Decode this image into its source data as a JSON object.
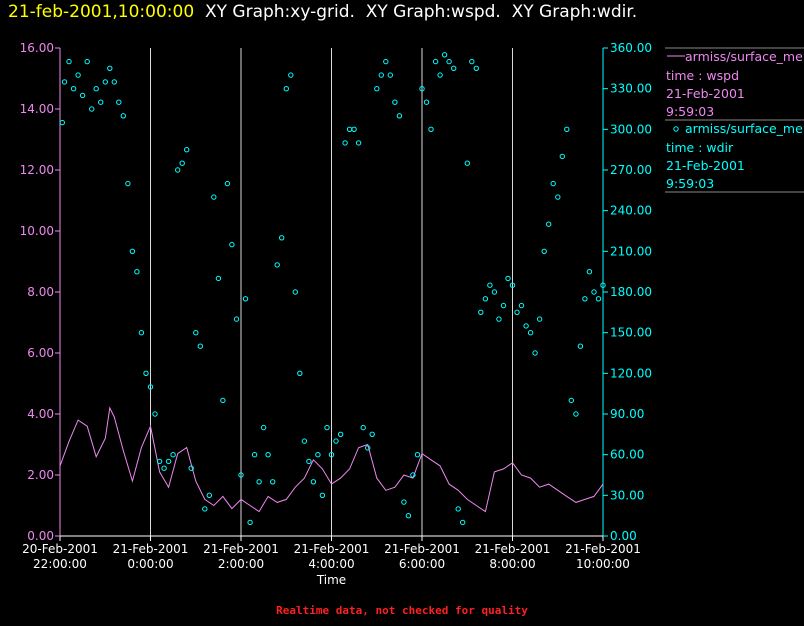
{
  "header": {
    "timestamp": "21-feb-2001,10:00:00",
    "graph_titles": [
      "XY Graph:xy-grid.",
      "XY Graph:wspd.",
      "XY Graph:wdir."
    ]
  },
  "footer_note": "Realtime data, not checked for quality",
  "colors": {
    "timestamp": "#ffff00",
    "wspd": "#ee88ee",
    "wdir": "#00ffff",
    "grid": "#ffffff",
    "background": "#000000",
    "warning": "#ff2020"
  },
  "legend": [
    {
      "marker": "line",
      "name": "armiss/surface_me",
      "var": "time : wspd",
      "date": "21-Feb-2001",
      "time": "9:59:03"
    },
    {
      "marker": "circle",
      "name": "armiss/surface_me",
      "var": "time : wdir",
      "date": "21-Feb-2001",
      "time": "9:59:03"
    }
  ],
  "chart_data": {
    "type": "line",
    "xlabel": "Time",
    "x_ticks": [
      {
        "date": "20-Feb-2001",
        "time": "22:00:00",
        "hour": -2
      },
      {
        "date": "21-Feb-2001",
        "time": "0:00:00",
        "hour": 0
      },
      {
        "date": "21-Feb-2001",
        "time": "2:00:00",
        "hour": 2
      },
      {
        "date": "21-Feb-2001",
        "time": "4:00:00",
        "hour": 4
      },
      {
        "date": "21-Feb-2001",
        "time": "6:00:00",
        "hour": 6
      },
      {
        "date": "21-Feb-2001",
        "time": "8:00:00",
        "hour": 8
      },
      {
        "date": "21-Feb-2001",
        "time": "10:00:00",
        "hour": 10
      }
    ],
    "xlim_hours": [
      -2,
      10
    ],
    "y_left": {
      "ticks": [
        "0.00",
        "2.00",
        "4.00",
        "6.00",
        "8.00",
        "10.00",
        "12.00",
        "14.00",
        "16.00"
      ],
      "lim": [
        0,
        16
      ]
    },
    "y_right": {
      "ticks": [
        "0.00",
        "30.00",
        "60.00",
        "90.00",
        "120.00",
        "150.00",
        "180.00",
        "210.00",
        "240.00",
        "270.00",
        "300.00",
        "330.00",
        "360.00"
      ],
      "lim": [
        0,
        360
      ]
    },
    "grid": "vertical",
    "series": [
      {
        "var": "wspd",
        "axis": "left",
        "style": "line",
        "x": [
          -2.0,
          -1.8,
          -1.6,
          -1.4,
          -1.2,
          -1.0,
          -0.9,
          -0.8,
          -0.6,
          -0.4,
          -0.2,
          0.0,
          0.2,
          0.4,
          0.6,
          0.8,
          1.0,
          1.2,
          1.4,
          1.6,
          1.8,
          2.0,
          2.2,
          2.4,
          2.6,
          2.8,
          3.0,
          3.2,
          3.4,
          3.6,
          3.8,
          4.0,
          4.2,
          4.4,
          4.6,
          4.8,
          5.0,
          5.2,
          5.4,
          5.6,
          5.8,
          6.0,
          6.2,
          6.4,
          6.6,
          6.8,
          7.0,
          7.2,
          7.4,
          7.6,
          7.8,
          8.0,
          8.2,
          8.4,
          8.6,
          8.8,
          9.0,
          9.2,
          9.4,
          9.6,
          9.8,
          10.0
        ],
        "y": [
          2.3,
          3.1,
          3.8,
          3.6,
          2.6,
          3.2,
          4.2,
          3.9,
          2.8,
          1.8,
          2.9,
          3.6,
          2.1,
          1.6,
          2.7,
          2.9,
          1.8,
          1.2,
          1.0,
          1.3,
          0.9,
          1.2,
          1.0,
          0.8,
          1.3,
          1.1,
          1.2,
          1.6,
          1.9,
          2.5,
          2.2,
          1.7,
          1.9,
          2.2,
          2.9,
          3.0,
          1.9,
          1.5,
          1.6,
          2.0,
          1.9,
          2.7,
          2.5,
          2.3,
          1.7,
          1.5,
          1.2,
          1.0,
          0.8,
          2.1,
          2.2,
          2.4,
          2.0,
          1.9,
          1.6,
          1.7,
          1.5,
          1.3,
          1.1,
          1.2,
          1.3,
          1.7
        ]
      },
      {
        "var": "wdir",
        "axis": "right",
        "style": "markers",
        "x": [
          -1.95,
          -1.9,
          -1.8,
          -1.7,
          -1.6,
          -1.5,
          -1.4,
          -1.3,
          -1.2,
          -1.1,
          -1.0,
          -0.9,
          -0.8,
          -0.7,
          -0.6,
          -0.5,
          -0.4,
          -0.3,
          -0.2,
          -0.1,
          0.0,
          0.1,
          0.2,
          0.3,
          0.4,
          0.5,
          0.6,
          0.7,
          0.8,
          0.9,
          1.0,
          1.1,
          1.2,
          1.3,
          1.4,
          1.5,
          1.6,
          1.7,
          1.8,
          1.9,
          2.0,
          2.1,
          2.2,
          2.3,
          2.4,
          2.5,
          2.6,
          2.7,
          2.8,
          2.9,
          3.0,
          3.1,
          3.2,
          3.3,
          3.4,
          3.5,
          3.6,
          3.7,
          3.8,
          3.9,
          4.0,
          4.1,
          4.2,
          4.3,
          4.4,
          4.5,
          4.6,
          4.7,
          4.8,
          4.9,
          5.0,
          5.1,
          5.2,
          5.3,
          5.4,
          5.5,
          5.6,
          5.7,
          5.8,
          5.9,
          6.0,
          6.1,
          6.2,
          6.3,
          6.4,
          6.5,
          6.6,
          6.7,
          6.8,
          6.9,
          7.0,
          7.1,
          7.2,
          7.3,
          7.4,
          7.5,
          7.6,
          7.7,
          7.8,
          7.9,
          8.0,
          8.1,
          8.2,
          8.3,
          8.4,
          8.5,
          8.6,
          8.7,
          8.8,
          8.9,
          9.0,
          9.1,
          9.2,
          9.3,
          9.4,
          9.5,
          9.6,
          9.7,
          9.8,
          9.9,
          10.0
        ],
        "y": [
          305,
          335,
          350,
          330,
          340,
          325,
          350,
          315,
          330,
          320,
          335,
          345,
          335,
          320,
          310,
          260,
          210,
          195,
          150,
          120,
          110,
          90,
          55,
          50,
          55,
          60,
          270,
          275,
          285,
          50,
          150,
          140,
          20,
          30,
          250,
          190,
          100,
          260,
          215,
          160,
          45,
          175,
          10,
          60,
          40,
          80,
          60,
          40,
          200,
          220,
          330,
          340,
          180,
          120,
          70,
          55,
          40,
          60,
          30,
          80,
          60,
          70,
          75,
          290,
          300,
          300,
          290,
          80,
          65,
          75,
          330,
          340,
          350,
          340,
          320,
          310,
          25,
          15,
          45,
          60,
          330,
          320,
          300,
          350,
          340,
          355,
          350,
          345,
          20,
          10,
          275,
          350,
          345,
          165,
          175,
          185,
          180,
          160,
          170,
          190,
          185,
          165,
          170,
          155,
          150,
          135,
          160,
          210,
          230,
          260,
          250,
          280,
          300,
          100,
          90,
          140,
          175,
          195,
          180,
          175,
          185
        ]
      }
    ]
  }
}
